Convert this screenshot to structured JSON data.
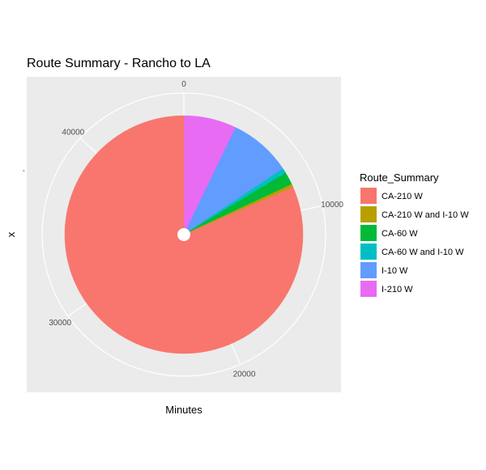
{
  "chart_data": {
    "type": "pie",
    "coord": "polar",
    "title": "Route Summary - Rancho to LA",
    "xlabel": "Minutes",
    "ylabel": "x",
    "y_tick_label": "-",
    "theta_range": [
      0,
      46000
    ],
    "theta_ticks": [
      0,
      10000,
      20000,
      30000,
      40000
    ],
    "grid": true,
    "legend": {
      "title": "Route_Summary",
      "position": "right"
    },
    "slices": [
      {
        "name": "I-210 W",
        "start": 0,
        "value": 3300,
        "color": "#E76BF3"
      },
      {
        "name": "I-10 W",
        "start": 3300,
        "value": 3900,
        "color": "#619CFF"
      },
      {
        "name": "CA-60 W and I-10 W",
        "start": 7200,
        "value": 300,
        "color": "#00BFC4"
      },
      {
        "name": "CA-60 W",
        "start": 7500,
        "value": 800,
        "color": "#00BA38"
      },
      {
        "name": "CA-210 W and I-10 W",
        "start": 8300,
        "value": 200,
        "color": "#B79F00"
      },
      {
        "name": "CA-210 W",
        "start": 8500,
        "value": 37500,
        "color": "#F8766D"
      }
    ],
    "legend_order": [
      "CA-210 W",
      "CA-210 W and I-10 W",
      "CA-60 W",
      "CA-60 W and I-10 W",
      "I-10 W",
      "I-210 W"
    ]
  }
}
